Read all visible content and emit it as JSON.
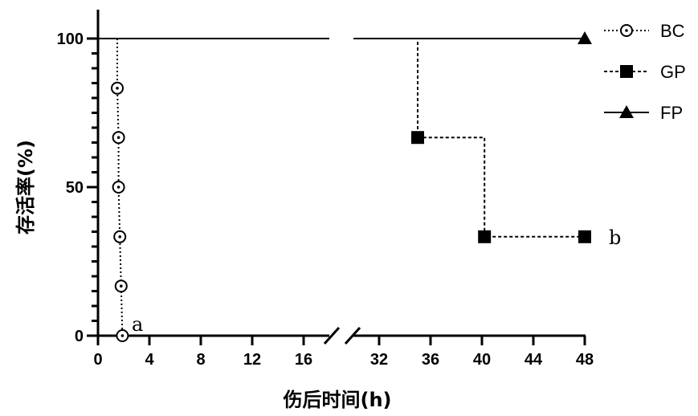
{
  "chart_data": {
    "type": "line",
    "step": true,
    "xlabel": "伤后时间(h)",
    "ylabel": "存活率(%)",
    "ylim": [
      0,
      100
    ],
    "xlim_segments": [
      [
        0,
        18
      ],
      [
        30,
        48
      ]
    ],
    "x_ticks": [
      0,
      4,
      8,
      12,
      16,
      32,
      36,
      40,
      44,
      48
    ],
    "y_ticks": [
      0,
      50,
      100
    ],
    "axis_break": true,
    "grid": false,
    "legend_position": "right",
    "series": [
      {
        "name": "BC",
        "style": "dotted",
        "marker": "circle-dot",
        "color": "#000000",
        "points": [
          [
            0,
            100
          ],
          [
            1.5,
            83.3
          ],
          [
            1.6,
            66.7
          ],
          [
            1.6,
            50
          ],
          [
            1.7,
            33.3
          ],
          [
            1.8,
            16.7
          ],
          [
            1.9,
            0
          ]
        ]
      },
      {
        "name": "GP",
        "style": "dashed",
        "marker": "square",
        "color": "#000000",
        "points": [
          [
            0,
            100
          ],
          [
            35,
            66.7
          ],
          [
            40.2,
            33.3
          ],
          [
            48,
            33.3
          ]
        ]
      },
      {
        "name": "FP",
        "style": "solid",
        "marker": "triangle",
        "color": "#000000",
        "points": [
          [
            0,
            100
          ],
          [
            48,
            100
          ]
        ]
      }
    ],
    "annotations": [
      {
        "text": "a",
        "x": 2,
        "y": 0
      },
      {
        "text": "b",
        "x": 48,
        "y": 33.3
      }
    ]
  }
}
